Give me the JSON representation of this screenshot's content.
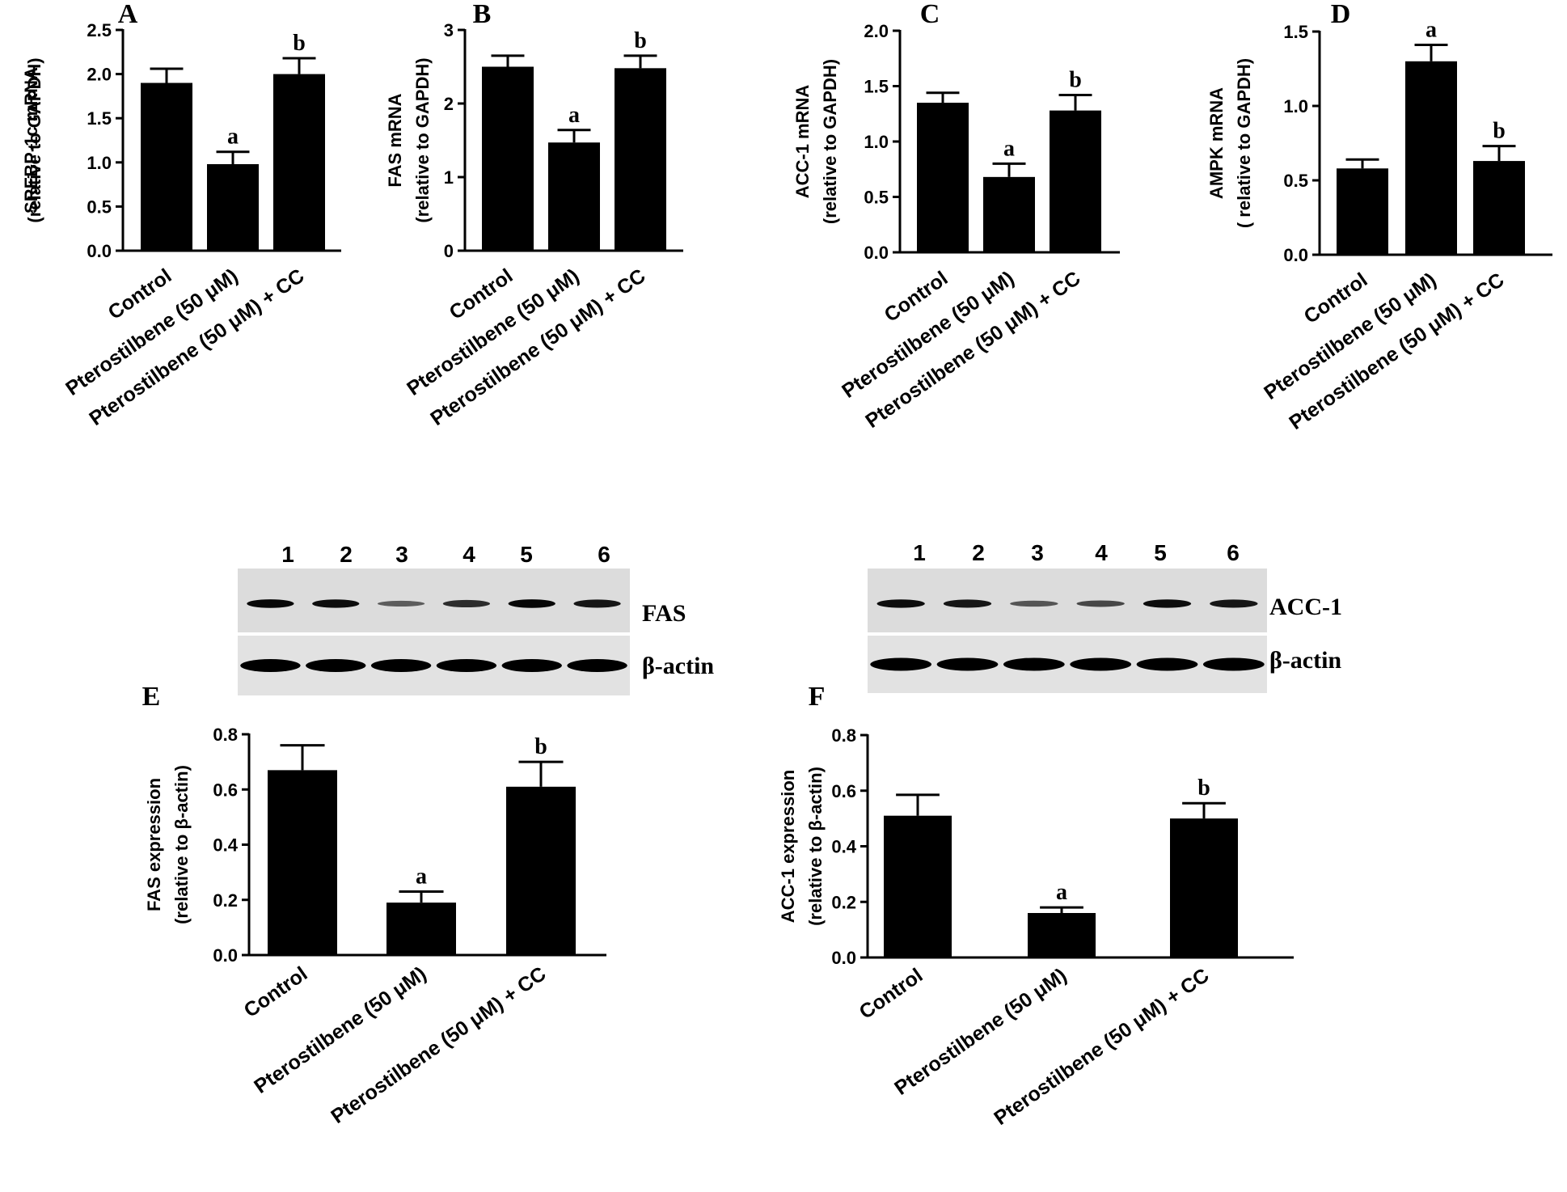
{
  "figure": {
    "blots": [
      {
        "id": "E",
        "lanes": [
          "1",
          "2",
          "3",
          "4",
          "5",
          "6"
        ],
        "protein_label": "FAS",
        "loading_label": "β-actin",
        "band_intensity": [
          0.95,
          0.9,
          0.35,
          0.7,
          0.95,
          0.85
        ]
      },
      {
        "id": "F",
        "lanes": [
          "1",
          "2",
          "3",
          "4",
          "5",
          "6"
        ],
        "protein_label": "ACC-1",
        "loading_label": "β-actin",
        "band_intensity": [
          0.9,
          0.85,
          0.4,
          0.5,
          0.9,
          0.85
        ]
      }
    ]
  },
  "chart_data": [
    {
      "panel": "A",
      "type": "bar",
      "categories": [
        "Control",
        "Pterostilbene (50 μM)",
        "Pterostilbene (50 μM) + CC"
      ],
      "values": [
        1.9,
        0.98,
        2.0
      ],
      "errors": [
        0.16,
        0.14,
        0.18
      ],
      "significance": [
        "",
        "a",
        "b"
      ],
      "ylabel": [
        "SREBP-1c mRNA",
        "(relative to GAPDH)"
      ],
      "ylim": [
        0,
        2.5
      ],
      "yticks": [
        "0.0",
        "0.5",
        "1.0",
        "1.5",
        "2.0",
        "2.5"
      ]
    },
    {
      "panel": "B",
      "type": "bar",
      "categories": [
        "Control",
        "Pterostilbene (50 μM)",
        "Pterostilbene (50 μM) + CC"
      ],
      "values": [
        2.5,
        1.47,
        2.48
      ],
      "errors": [
        0.15,
        0.17,
        0.17
      ],
      "significance": [
        "",
        "a",
        "b"
      ],
      "ylabel": [
        "FAS mRNA",
        "(relative to GAPDH)"
      ],
      "ylim": [
        0,
        3
      ],
      "yticks": [
        "0",
        "1",
        "2",
        "3"
      ]
    },
    {
      "panel": "C",
      "type": "bar",
      "categories": [
        "Control",
        "Pterostilbene (50 μM)",
        "Pterostilbene (50 μM) + CC"
      ],
      "values": [
        1.35,
        0.68,
        1.28
      ],
      "errors": [
        0.09,
        0.12,
        0.14
      ],
      "significance": [
        "",
        "a",
        "b"
      ],
      "ylabel": [
        "ACC-1 mRNA",
        "(relative to GAPDH)"
      ],
      "ylim": [
        0,
        2.0
      ],
      "yticks": [
        "0.0",
        "0.5",
        "1.0",
        "1.5",
        "2.0"
      ]
    },
    {
      "panel": "D",
      "type": "bar",
      "categories": [
        "Control",
        "Pterostilbene (50 μM)",
        "Pterostilbene (50 μM) + CC"
      ],
      "values": [
        0.58,
        1.3,
        0.63
      ],
      "errors": [
        0.06,
        0.11,
        0.1
      ],
      "significance": [
        "",
        "a",
        "b"
      ],
      "ylabel": [
        "AMPK mRNA",
        "( relative to GAPDH)"
      ],
      "ylim": [
        0,
        1.5
      ],
      "yticks": [
        "0.0",
        "0.5",
        "1.0",
        "1.5"
      ]
    },
    {
      "panel": "E",
      "type": "bar",
      "categories": [
        "Control",
        "Pterostilbene (50 μM)",
        "Pterostilbene (50 μM) + CC"
      ],
      "values": [
        0.67,
        0.19,
        0.61
      ],
      "errors": [
        0.09,
        0.04,
        0.09
      ],
      "significance": [
        "",
        "a",
        "b"
      ],
      "ylabel": [
        "FAS expression",
        "(relative to β-actin)"
      ],
      "ylim": [
        0,
        0.8
      ],
      "yticks": [
        "0.0",
        "0.2",
        "0.4",
        "0.6",
        "0.8"
      ]
    },
    {
      "panel": "F",
      "type": "bar",
      "categories": [
        "Control",
        "Pterostilbene (50 μM)",
        "Pterostilbene (50 μM) + CC"
      ],
      "values": [
        0.51,
        0.16,
        0.5
      ],
      "errors": [
        0.075,
        0.02,
        0.055
      ],
      "significance": [
        "",
        "a",
        "b"
      ],
      "ylabel": [
        "ACC-1 expression",
        "(relative to β-actin)"
      ],
      "ylim": [
        0,
        0.8
      ],
      "yticks": [
        "0.0",
        "0.2",
        "0.4",
        "0.6",
        "0.8"
      ]
    }
  ]
}
